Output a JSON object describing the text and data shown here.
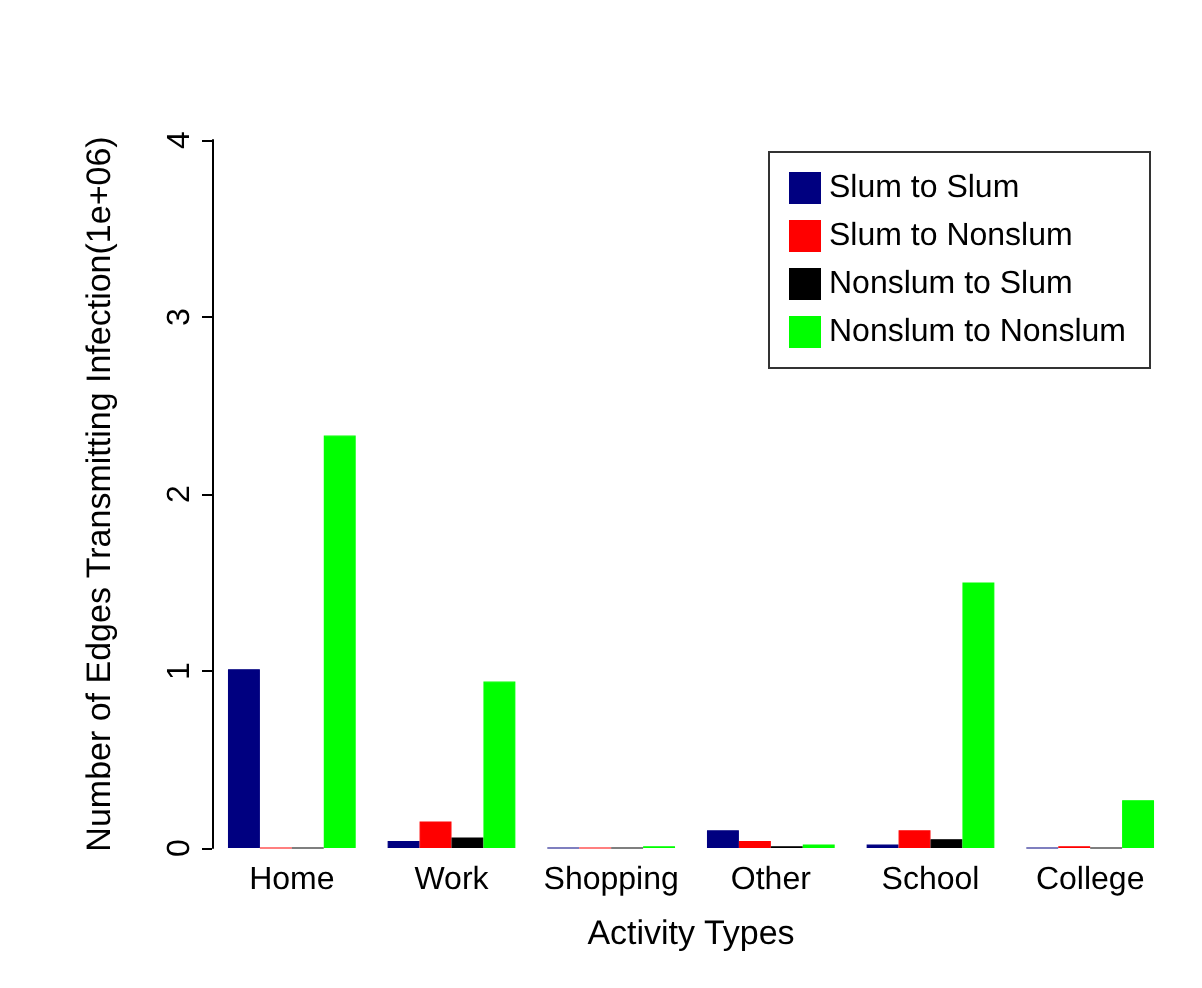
{
  "chart_data": {
    "type": "bar",
    "xlabel": "Activity Types",
    "ylabel": "Number of Edges Transmitting Infection(1e+06)",
    "categories": [
      "Home",
      "Work",
      "Shopping",
      "Other",
      "School",
      "College"
    ],
    "series": [
      {
        "name": "Slum to Slum",
        "color": "#000080",
        "values": [
          1.01,
          0.04,
          0,
          0.1,
          0.02,
          0
        ]
      },
      {
        "name": "Slum to Nonslum",
        "color": "#ff0000",
        "values": [
          0,
          0.15,
          0,
          0.04,
          0.1,
          0.01
        ]
      },
      {
        "name": "Nonslum to Slum",
        "color": "#000000",
        "values": [
          0,
          0.06,
          0,
          0.01,
          0.05,
          0
        ]
      },
      {
        "name": "Nonslum to Nonslum",
        "color": "#00ff00",
        "values": [
          2.33,
          0.94,
          0.01,
          0.02,
          1.5,
          0.27
        ]
      }
    ],
    "ylim": [
      0,
      4
    ],
    "yticks": [
      0,
      1,
      2,
      3,
      4
    ],
    "grid": false,
    "legend": "top right"
  }
}
